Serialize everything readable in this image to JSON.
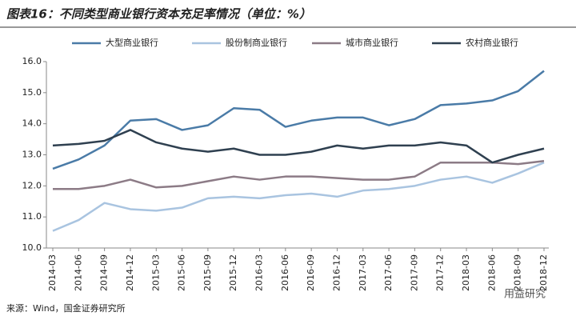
{
  "chart_data": {
    "type": "line",
    "title": "图表16：不同类型商业银行资本充足率情况（单位：%）",
    "source": "来源：Wind，国金证券研究所",
    "watermark": "用益研究",
    "categories": [
      "2014-03",
      "2014-06",
      "2014-09",
      "2014-12",
      "2015-03",
      "2015-06",
      "2015-09",
      "2015-12",
      "2016-03",
      "2016-06",
      "2016-09",
      "2016-12",
      "2017-03",
      "2017-06",
      "2017-09",
      "2017-12",
      "2018-03",
      "2018-06",
      "2018-09",
      "2018-12"
    ],
    "series": [
      {
        "name": "大型商业银行",
        "color": "#4a7ba7",
        "values": [
          12.55,
          12.85,
          13.3,
          14.1,
          14.15,
          13.8,
          13.95,
          14.5,
          14.45,
          13.9,
          14.1,
          14.2,
          14.2,
          13.95,
          14.15,
          14.6,
          14.65,
          14.75,
          15.05,
          15.7
        ]
      },
      {
        "name": "股份制商业银行",
        "color": "#a9c4e0",
        "values": [
          10.55,
          10.9,
          11.45,
          11.25,
          11.2,
          11.3,
          11.6,
          11.65,
          11.6,
          11.7,
          11.75,
          11.65,
          11.85,
          11.9,
          12.0,
          12.2,
          12.3,
          12.1,
          12.4,
          12.75
        ]
      },
      {
        "name": "城市商业银行",
        "color": "#8c7b86",
        "values": [
          11.9,
          11.9,
          12.0,
          12.2,
          11.95,
          12.0,
          12.15,
          12.3,
          12.2,
          12.3,
          12.3,
          12.25,
          12.2,
          12.2,
          12.3,
          12.75,
          12.75,
          12.75,
          12.7,
          12.8
        ]
      },
      {
        "name": "农村商业银行",
        "color": "#2f4050",
        "values": [
          13.3,
          13.35,
          13.45,
          13.8,
          13.4,
          13.2,
          13.1,
          13.2,
          13.0,
          13.0,
          13.1,
          13.3,
          13.2,
          13.3,
          13.3,
          13.4,
          13.3,
          12.75,
          13.0,
          13.2
        ]
      }
    ],
    "ylim": [
      10,
      16
    ],
    "yticks": [
      {
        "value": 10,
        "label": "10.0"
      },
      {
        "value": 11,
        "label": "11.0"
      },
      {
        "value": 12,
        "label": "12.0"
      },
      {
        "value": 13,
        "label": "13.0"
      },
      {
        "value": 14,
        "label": "14.0"
      },
      {
        "value": 15,
        "label": "15.0"
      },
      {
        "value": 16,
        "label": "16.0"
      }
    ]
  }
}
